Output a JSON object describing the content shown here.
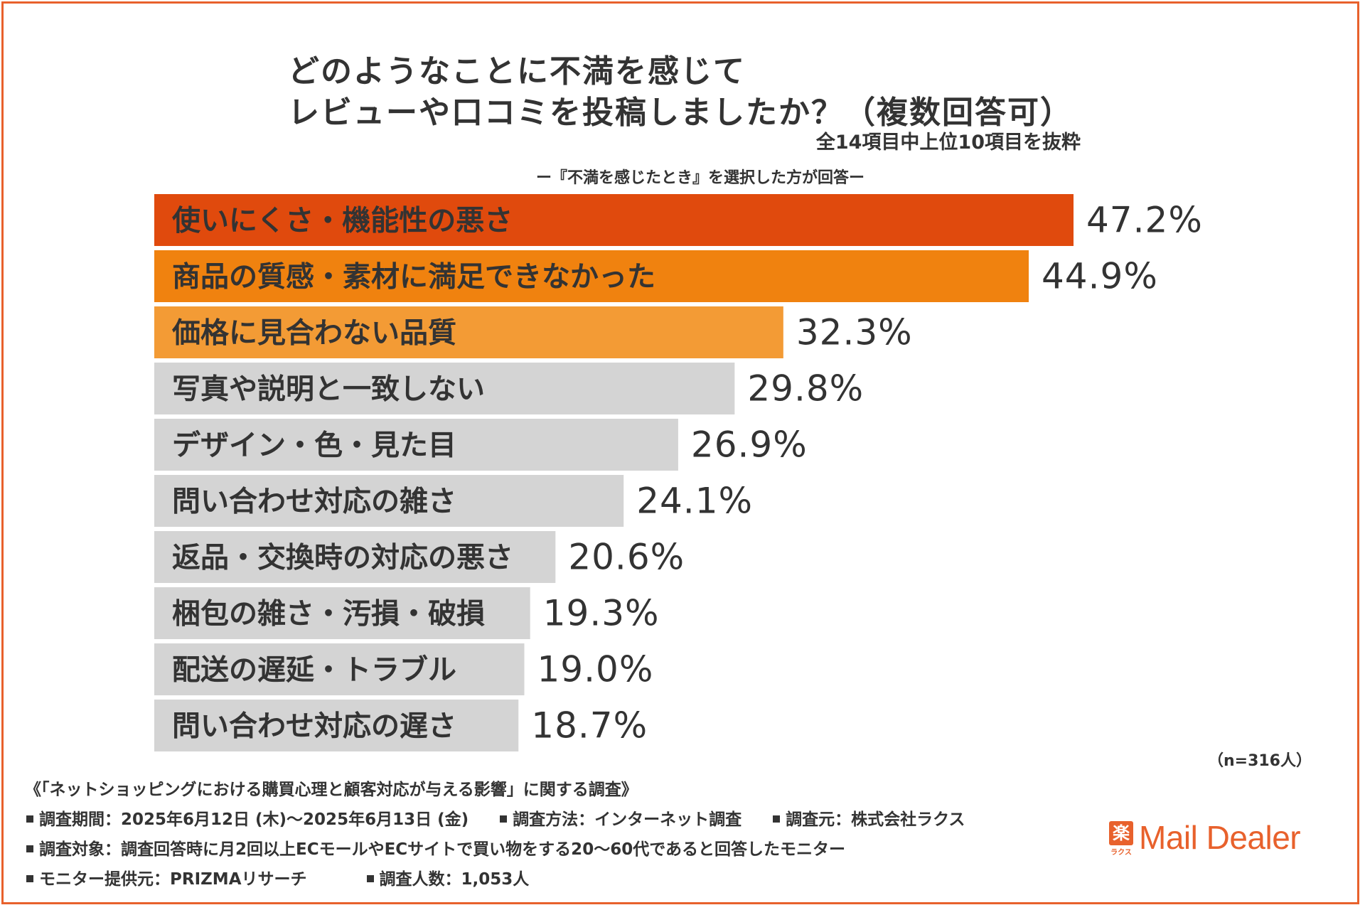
{
  "title_line1": "どのようなことに不満を感じて",
  "title_line2": "レビューや口コミを投稿しましたか？（複数回答可）",
  "subtitle": "全14項目中上位10項目を抜粋",
  "note": "ー『不満を感じたとき』を選択した方が回答ー",
  "sample_size": "（n=316人）",
  "chart_data": {
    "type": "bar",
    "orientation": "horizontal",
    "categories": [
      "使いにくさ・機能性の悪さ",
      "商品の質感・素材に満足できなかった",
      "価格に見合わない品質",
      "写真や説明と一致しない",
      "デザイン・色・見た目",
      "問い合わせ対応の雑さ",
      "返品・交換時の対応の悪さ",
      "梱包の雑さ・汚損・破損",
      "配送の遅延・トラブル",
      "問い合わせ対応の遅さ"
    ],
    "values": [
      47.2,
      44.9,
      32.3,
      29.8,
      26.9,
      24.1,
      20.6,
      19.3,
      19.0,
      18.7
    ],
    "value_labels": [
      "47.2%",
      "44.9%",
      "32.3%",
      "29.8%",
      "26.9%",
      "24.1%",
      "20.6%",
      "19.3%",
      "19.0%",
      "18.7%"
    ],
    "bar_colors": [
      "#e04a0d",
      "#f0820f",
      "#f39b35",
      "#d4d4d4",
      "#d4d4d4",
      "#d4d4d4",
      "#d4d4d4",
      "#d4d4d4",
      "#d4d4d4",
      "#d4d4d4"
    ],
    "xlim": [
      0,
      47.2
    ],
    "grid": false,
    "legend": "none"
  },
  "footer": {
    "survey_title": "《「ネットショッピングにおける購買心理と顧客対応が与える影響」に関する調査》",
    "period": "調査期間：2025年6月12日 (木)～2025年6月13日 (金)",
    "method": "調査方法：インターネット調査",
    "source": "調査元：株式会社ラクス",
    "target": "調査対象：調査回答時に月2回以上ECモールやECサイトで買い物をする20～60代であると回答したモニター",
    "provider": "モニター提供元：PRIZMAリサーチ",
    "respondents": "調査人数：1,053人"
  },
  "logo": {
    "mark": "楽",
    "mark_sub": "ラクス",
    "text": "Mail Dealer",
    "color": "#e8612c"
  }
}
